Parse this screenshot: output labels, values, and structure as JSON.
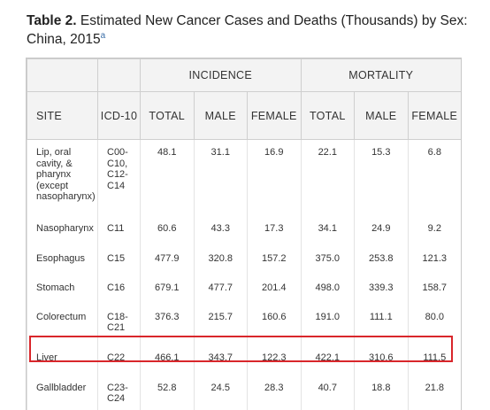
{
  "caption": {
    "label": "Table 2.",
    "text": " Estimated New Cancer Cases and Deaths (Thousands) by Sex: China, 2015",
    "footnote_mark": "a"
  },
  "table": {
    "group_headers": {
      "incidence": "INCIDENCE",
      "mortality": "MORTALITY"
    },
    "columns": {
      "site": "SITE",
      "icd": "ICD-10",
      "total": "TOTAL",
      "male": "MALE",
      "female": "FEMALE"
    },
    "rows": [
      {
        "site": "Lip, oral cavity, & pharynx (except nasopharynx)",
        "icd": "C00-C10, C12-C14",
        "inc_total": "48.1",
        "inc_male": "31.1",
        "inc_female": "16.9",
        "mort_total": "22.1",
        "mort_male": "15.3",
        "mort_female": "6.8"
      },
      {
        "site": "Nasopharynx",
        "icd": "C11",
        "inc_total": "60.6",
        "inc_male": "43.3",
        "inc_female": "17.3",
        "mort_total": "34.1",
        "mort_male": "24.9",
        "mort_female": "9.2"
      },
      {
        "site": "Esophagus",
        "icd": "C15",
        "inc_total": "477.9",
        "inc_male": "320.8",
        "inc_female": "157.2",
        "mort_total": "375.0",
        "mort_male": "253.8",
        "mort_female": "121.3"
      },
      {
        "site": "Stomach",
        "icd": "C16",
        "inc_total": "679.1",
        "inc_male": "477.7",
        "inc_female": "201.4",
        "mort_total": "498.0",
        "mort_male": "339.3",
        "mort_female": "158.7"
      },
      {
        "site": "Colorectum",
        "icd": "C18-C21",
        "inc_total": "376.3",
        "inc_male": "215.7",
        "inc_female": "160.6",
        "mort_total": "191.0",
        "mort_male": "111.1",
        "mort_female": "80.0"
      },
      {
        "site": "Liver",
        "icd": "C22",
        "inc_total": "466.1",
        "inc_male": "343.7",
        "inc_female": "122.3",
        "mort_total": "422.1",
        "mort_male": "310.6",
        "mort_female": "111.5"
      },
      {
        "site": "Gallbladder",
        "icd": "C23-C24",
        "inc_total": "52.8",
        "inc_male": "24.5",
        "inc_female": "28.3",
        "mort_total": "40.7",
        "mort_male": "18.8",
        "mort_female": "21.8"
      }
    ]
  },
  "highlight_color": "#d9262b"
}
